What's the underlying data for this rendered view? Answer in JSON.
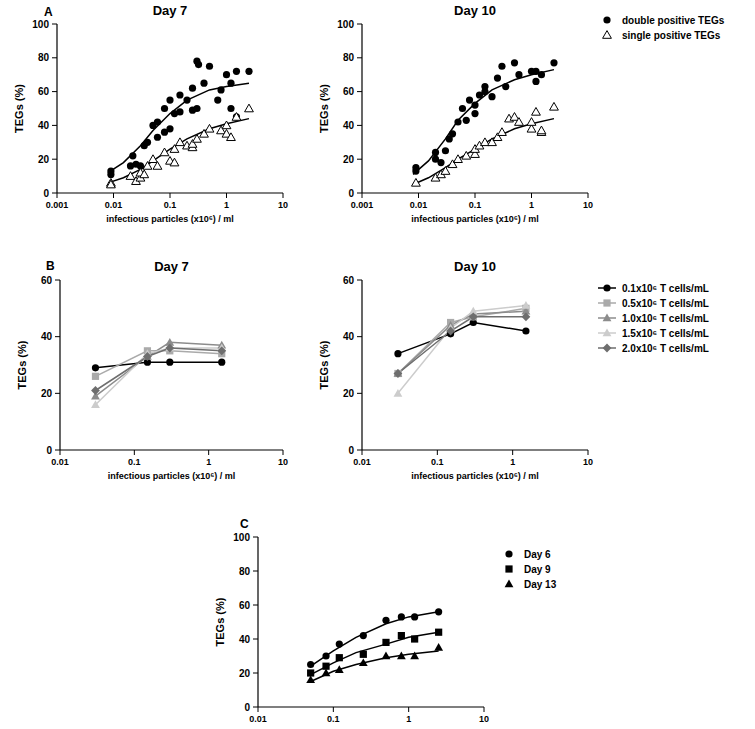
{
  "chart_data": [
    {
      "type": "scatter",
      "annotation": "A",
      "title": "Day 7",
      "x_label": "infectious particles (x10⁶) / ml",
      "y_label": "TEGs (%)",
      "log": "x",
      "xlim": [
        0.001,
        10
      ],
      "ylim": [
        0,
        100
      ],
      "xticks": [
        0.001,
        0.01,
        0.1,
        1,
        10
      ],
      "yticks": [
        0,
        20,
        40,
        60,
        80,
        100
      ],
      "series": [
        {
          "color": "#000000",
          "marker": "circle",
          "x": [
            0.009,
            0.009,
            0.02,
            0.022,
            0.025,
            0.03,
            0.035,
            0.04,
            0.05,
            0.06,
            0.06,
            0.08,
            0.08,
            0.1,
            0.1,
            0.12,
            0.15,
            0.15,
            0.2,
            0.25,
            0.25,
            0.3,
            0.32,
            0.3,
            0.4,
            0.5,
            0.7,
            0.8,
            1.0,
            1.2,
            1.5,
            1.5,
            2.5,
            1.2
          ],
          "values": [
            13,
            11,
            16,
            22,
            17,
            16,
            28,
            30,
            40,
            33,
            42,
            50,
            36,
            38,
            55,
            47,
            58,
            48,
            55,
            62,
            49,
            78,
            76,
            50,
            65,
            75,
            55,
            61,
            70,
            65,
            45,
            72,
            72,
            50
          ]
        },
        {
          "color": "#000000",
          "marker": "triangle-open",
          "x": [
            0.009,
            0.009,
            0.02,
            0.025,
            0.03,
            0.03,
            0.035,
            0.04,
            0.05,
            0.06,
            0.08,
            0.1,
            0.12,
            0.12,
            0.15,
            0.2,
            0.25,
            0.25,
            0.3,
            0.4,
            0.5,
            0.8,
            1.0,
            1.0,
            1.2,
            1.5,
            2.5
          ],
          "values": [
            6,
            5,
            10,
            7,
            9,
            12,
            11,
            16,
            20,
            16,
            24,
            19,
            18,
            26,
            30,
            28,
            27,
            29,
            32,
            35,
            38,
            37,
            35,
            40,
            33,
            45,
            50
          ]
        },
        {
          "type": "line",
          "color": "#000000",
          "x": [
            0.008,
            0.015,
            0.03,
            0.05,
            0.1,
            0.2,
            0.5,
            1,
            2.5
          ],
          "values": [
            12,
            18,
            28,
            37,
            47,
            55,
            61,
            63,
            65
          ]
        },
        {
          "type": "line",
          "color": "#000000",
          "x": [
            0.008,
            0.015,
            0.03,
            0.05,
            0.1,
            0.2,
            0.5,
            1,
            2.5
          ],
          "values": [
            6,
            9,
            14,
            19,
            26,
            32,
            38,
            41,
            44
          ]
        }
      ]
    },
    {
      "type": "scatter",
      "title": "Day 10",
      "x_label": "infectious particles (x10⁶) / ml",
      "y_label": "TEGs (%)",
      "log": "x",
      "xlim": [
        0.001,
        10
      ],
      "ylim": [
        0,
        100
      ],
      "xticks": [
        0.001,
        0.01,
        0.1,
        1,
        10
      ],
      "yticks": [
        0,
        20,
        40,
        60,
        80,
        100
      ],
      "legend": "outside-right",
      "series": [
        {
          "name": "double positive TEGs",
          "color": "#000000",
          "marker": "circle",
          "x": [
            0.009,
            0.009,
            0.02,
            0.02,
            0.025,
            0.03,
            0.035,
            0.04,
            0.05,
            0.06,
            0.07,
            0.08,
            0.1,
            0.1,
            0.12,
            0.15,
            0.15,
            0.2,
            0.25,
            0.3,
            0.35,
            0.5,
            0.6,
            1.0,
            1.2,
            1.2,
            1.5,
            2.5
          ],
          "values": [
            15,
            13,
            20,
            24,
            18,
            25,
            32,
            35,
            42,
            50,
            43,
            55,
            52,
            47,
            58,
            60,
            63,
            57,
            68,
            75,
            63,
            77,
            70,
            72,
            66,
            72,
            70,
            77
          ]
        },
        {
          "name": "single positive TEGs",
          "color": "#000000",
          "marker": "triangle-open",
          "x": [
            0.009,
            0.02,
            0.025,
            0.03,
            0.04,
            0.05,
            0.07,
            0.1,
            0.1,
            0.12,
            0.15,
            0.2,
            0.25,
            0.3,
            0.4,
            0.5,
            0.6,
            1.0,
            1.0,
            1.2,
            1.5,
            1.5,
            2.5
          ],
          "values": [
            6,
            9,
            11,
            13,
            17,
            20,
            22,
            23,
            26,
            28,
            30,
            30,
            33,
            36,
            44,
            45,
            42,
            38,
            42,
            48,
            36,
            37,
            51
          ]
        },
        {
          "type": "line",
          "color": "#000000",
          "x": [
            0.008,
            0.015,
            0.03,
            0.05,
            0.1,
            0.2,
            0.5,
            1,
            2.5
          ],
          "values": [
            11,
            19,
            32,
            43,
            53,
            61,
            67,
            70,
            73
          ]
        },
        {
          "type": "line",
          "color": "#000000",
          "x": [
            0.008,
            0.015,
            0.03,
            0.05,
            0.1,
            0.2,
            0.5,
            1,
            2.5
          ],
          "values": [
            5,
            9,
            15,
            20,
            26,
            32,
            38,
            41,
            44
          ]
        }
      ]
    },
    {
      "type": "line",
      "annotation": "B",
      "title": "Day 7",
      "x_label": "infectious particles (x10⁶) / ml",
      "y_label": "TEGs (%)",
      "log": "x",
      "xlim": [
        0.01,
        10
      ],
      "ylim": [
        0,
        60
      ],
      "xticks": [
        0.01,
        0.1,
        1,
        10
      ],
      "yticks": [
        0,
        20,
        40,
        60
      ],
      "x": [
        0.03,
        0.15,
        0.3,
        1.5
      ],
      "series": [
        {
          "color": "#000000",
          "marker": "circle",
          "values": [
            29,
            31,
            31,
            31
          ]
        },
        {
          "color": "#aaaaaa",
          "marker": "square",
          "values": [
            26,
            35,
            35,
            34
          ]
        },
        {
          "color": "#8c8c8c",
          "marker": "triangle",
          "values": [
            19,
            33,
            38,
            37
          ]
        },
        {
          "color": "#cccccc",
          "marker": "triangle",
          "values": [
            16,
            34,
            36,
            36
          ]
        },
        {
          "color": "#6e6e6e",
          "marker": "diamond",
          "values": [
            21,
            33,
            36,
            35
          ]
        }
      ]
    },
    {
      "type": "line",
      "title": "Day 10",
      "x_label": "infectious particles (x10⁶) / ml",
      "y_label": "TEGs (%)",
      "log": "x",
      "xlim": [
        0.01,
        10
      ],
      "ylim": [
        0,
        60
      ],
      "xticks": [
        0.01,
        0.1,
        1,
        10
      ],
      "yticks": [
        0,
        20,
        40,
        60
      ],
      "legend": "outside-right",
      "x": [
        0.03,
        0.15,
        0.3,
        1.5
      ],
      "series": [
        {
          "name": "0.1x10⁶ T cells/mL",
          "color": "#000000",
          "marker": "circle",
          "values": [
            34,
            41,
            45,
            42
          ]
        },
        {
          "name": "0.5x10⁶ T cells/mL",
          "color": "#aaaaaa",
          "marker": "square",
          "values": [
            27,
            45,
            47,
            50
          ]
        },
        {
          "name": "1.0x10⁶ T cells/mL",
          "color": "#8c8c8c",
          "marker": "triangle",
          "values": [
            27,
            44,
            48,
            49
          ]
        },
        {
          "name": "1.5x10⁶ T cells/mL",
          "color": "#cccccc",
          "marker": "triangle",
          "values": [
            20,
            43,
            49,
            51
          ]
        },
        {
          "name": "2.0x10⁶ T cells/mL",
          "color": "#6e6e6e",
          "marker": "diamond",
          "values": [
            27,
            42,
            47,
            47
          ]
        }
      ]
    },
    {
      "type": "scatter",
      "annotation": "C",
      "x_label": "infectious particles (x10⁶) / ml",
      "y_label": "TEGs (%)",
      "log": "x",
      "xlim": [
        0.01,
        10
      ],
      "ylim": [
        0,
        100
      ],
      "xticks": [
        0.01,
        0.1,
        1,
        10
      ],
      "yticks": [
        0,
        20,
        40,
        60,
        80,
        100
      ],
      "legend": "top-right",
      "series": [
        {
          "name": "Day 6",
          "color": "#000000",
          "marker": "circle",
          "x": [
            0.05,
            0.08,
            0.12,
            0.25,
            0.5,
            0.8,
            1.2,
            2.5
          ],
          "values": [
            25,
            30,
            37,
            42,
            51,
            53,
            53,
            56
          ]
        },
        {
          "name": "Day 9",
          "color": "#000000",
          "marker": "square",
          "x": [
            0.05,
            0.08,
            0.12,
            0.25,
            0.5,
            0.8,
            1.2,
            2.5
          ],
          "values": [
            20,
            24,
            29,
            31,
            38,
            42,
            40,
            44
          ]
        },
        {
          "name": "Day 13",
          "color": "#000000",
          "marker": "triangle",
          "x": [
            0.05,
            0.08,
            0.12,
            0.25,
            0.5,
            0.8,
            1.2,
            2.5
          ],
          "values": [
            16,
            20,
            22,
            26,
            30,
            30,
            30,
            35
          ]
        },
        {
          "type": "line",
          "color": "#000000",
          "x": [
            0.05,
            0.1,
            0.2,
            0.5,
            1,
            2.5
          ],
          "values": [
            24,
            33,
            41,
            49,
            53,
            56
          ]
        },
        {
          "type": "line",
          "color": "#000000",
          "x": [
            0.05,
            0.1,
            0.2,
            0.5,
            1,
            2.5
          ],
          "values": [
            19,
            26,
            32,
            37,
            41,
            44
          ]
        },
        {
          "type": "line",
          "color": "#000000",
          "x": [
            0.05,
            0.1,
            0.2,
            0.5,
            1,
            2.5
          ],
          "values": [
            15,
            21,
            25,
            29,
            31,
            33
          ]
        }
      ]
    }
  ]
}
